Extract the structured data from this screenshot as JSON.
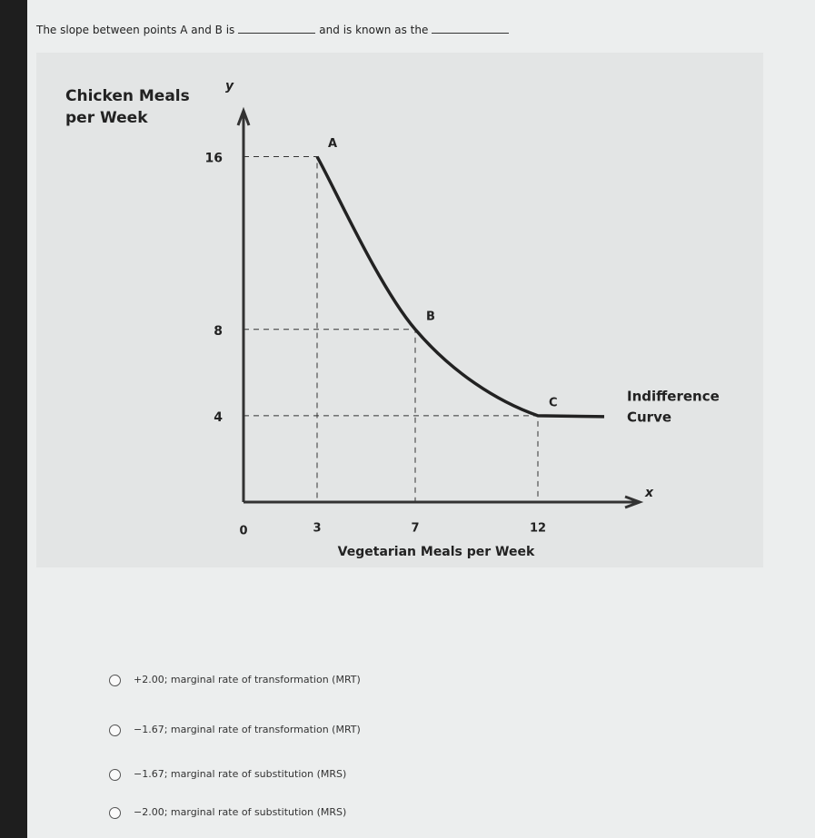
{
  "question": {
    "before": "The slope between points A and B is",
    "middle": "and is known as the"
  },
  "figure": {
    "y_label": [
      "Chicken Meals",
      "per Week"
    ],
    "y_symbol": "y",
    "x_symbol": "x",
    "x_label": "Vegetarian Meals per Week",
    "curve_label": [
      "Indifference",
      "Curve"
    ],
    "origin": "0",
    "xlim": [
      0,
      16
    ],
    "ylim": [
      0,
      18
    ],
    "xticks": [
      3,
      7,
      12
    ],
    "yticks": [
      4,
      8,
      16
    ],
    "points": [
      {
        "label": "A",
        "x": 3,
        "y": 16
      },
      {
        "label": "B",
        "x": 7,
        "y": 8
      },
      {
        "label": "C",
        "x": 12,
        "y": 4
      }
    ]
  },
  "options": [
    "+2.00; marginal rate of transformation (MRT)",
    "−1.67; marginal rate of transformation (MRT)",
    "−1.67; marginal rate of substitution (MRS)",
    "−2.00; marginal rate of substitution (MRS)"
  ]
}
